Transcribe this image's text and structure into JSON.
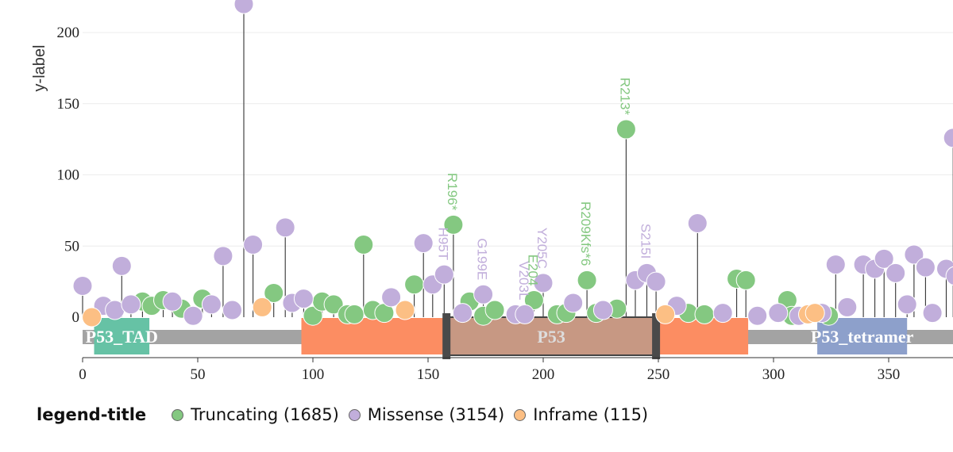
{
  "chart_data": {
    "type": "lollipop",
    "ylabel": "y-label",
    "xlim": [
      0,
      375
    ],
    "ylim": [
      -30,
      225
    ],
    "x_ticks": [
      0,
      50,
      100,
      150,
      200,
      250,
      300,
      350
    ],
    "y_ticks": [
      0,
      50,
      100,
      150,
      200
    ],
    "colors": {
      "Truncating": "#84c881",
      "Missense": "#c1aedb",
      "Inframe": "#fcbf84"
    },
    "domains": [
      {
        "label": "P53_TAD",
        "start": 5,
        "end": 29,
        "color": "#66c2a5"
      },
      {
        "label": "",
        "start": 95,
        "end": 289,
        "color": "#fc8d62"
      },
      {
        "label": "P53",
        "start": 158,
        "end": 249,
        "color": "#c79883"
      },
      {
        "label": "P53_tetramer",
        "start": 319,
        "end": 358,
        "color": "#8da0cb"
      }
    ],
    "series": [
      {
        "name": "Truncating",
        "points": [
          [
            26,
            11
          ],
          [
            30,
            8
          ],
          [
            35,
            12
          ],
          [
            43,
            6
          ],
          [
            52,
            13
          ],
          [
            83,
            17
          ],
          [
            100,
            1
          ],
          [
            104,
            11
          ],
          [
            109,
            9
          ],
          [
            115,
            2
          ],
          [
            118,
            2
          ],
          [
            122,
            51
          ],
          [
            126,
            5
          ],
          [
            131,
            3
          ],
          [
            144,
            23
          ],
          [
            161,
            65
          ],
          [
            168,
            11
          ],
          [
            174,
            1
          ],
          [
            179,
            5
          ],
          [
            196,
            12
          ],
          [
            206,
            2
          ],
          [
            210,
            3
          ],
          [
            219,
            26
          ],
          [
            223,
            3
          ],
          [
            232,
            6
          ],
          [
            236,
            132
          ],
          [
            263,
            3
          ],
          [
            270,
            2
          ],
          [
            284,
            27
          ],
          [
            288,
            26
          ],
          [
            306,
            12
          ],
          [
            308,
            1
          ],
          [
            324,
            1
          ]
        ]
      },
      {
        "name": "Missense",
        "points": [
          [
            0,
            22
          ],
          [
            9,
            8
          ],
          [
            14,
            5
          ],
          [
            17,
            36
          ],
          [
            21,
            9
          ],
          [
            39,
            11
          ],
          [
            48,
            1
          ],
          [
            56,
            9
          ],
          [
            61,
            43
          ],
          [
            65,
            5
          ],
          [
            70,
            220
          ],
          [
            74,
            51
          ],
          [
            88,
            63
          ],
          [
            91,
            10
          ],
          [
            96,
            13
          ],
          [
            134,
            14
          ],
          [
            148,
            52
          ],
          [
            152,
            23
          ],
          [
            157,
            30
          ],
          [
            165,
            3
          ],
          [
            174,
            16
          ],
          [
            188,
            2
          ],
          [
            192,
            2
          ],
          [
            200,
            24
          ],
          [
            213,
            10
          ],
          [
            226,
            5
          ],
          [
            240,
            26
          ],
          [
            245,
            31
          ],
          [
            249,
            25
          ],
          [
            258,
            8
          ],
          [
            267,
            66
          ],
          [
            278,
            3
          ],
          [
            293,
            1
          ],
          [
            302,
            3
          ],
          [
            311,
            1
          ],
          [
            321,
            3
          ],
          [
            327,
            37
          ],
          [
            332,
            7
          ],
          [
            339,
            37
          ],
          [
            344,
            34
          ],
          [
            348,
            41
          ],
          [
            353,
            31
          ],
          [
            358,
            9
          ],
          [
            361,
            44
          ],
          [
            366,
            35
          ],
          [
            369,
            3
          ],
          [
            375,
            34
          ],
          [
            378,
            126
          ],
          [
            379,
            29
          ]
        ]
      },
      {
        "name": "Inframe",
        "points": [
          [
            4,
            0
          ],
          [
            78,
            7
          ],
          [
            140,
            5
          ],
          [
            253,
            2
          ],
          [
            315,
            2
          ],
          [
            318,
            3
          ]
        ]
      }
    ],
    "annotations": [
      {
        "text": "R196*",
        "x": 161,
        "series": "Truncating"
      },
      {
        "text": "H95T",
        "x": 157,
        "series": "Missense"
      },
      {
        "text": "G199E",
        "x": 174,
        "series": "Missense"
      },
      {
        "text": "E204",
        "x": 196,
        "series": "Truncating"
      },
      {
        "text": "V203L",
        "x": 192,
        "series": "Missense"
      },
      {
        "text": "Y205C",
        "x": 200,
        "series": "Missense"
      },
      {
        "text": "R209Kfs*6",
        "x": 219,
        "series": "Truncating"
      },
      {
        "text": "R213*",
        "x": 236,
        "series": "Truncating"
      },
      {
        "text": "S215I",
        "x": 245,
        "series": "Missense"
      }
    ]
  },
  "legend": {
    "title": "legend-title",
    "items": [
      {
        "label": "Truncating (1685)",
        "color": "#84c881"
      },
      {
        "label": "Missense (3154)",
        "color": "#c1aedb"
      },
      {
        "label": "Inframe (115)",
        "color": "#fcbf84"
      }
    ]
  }
}
